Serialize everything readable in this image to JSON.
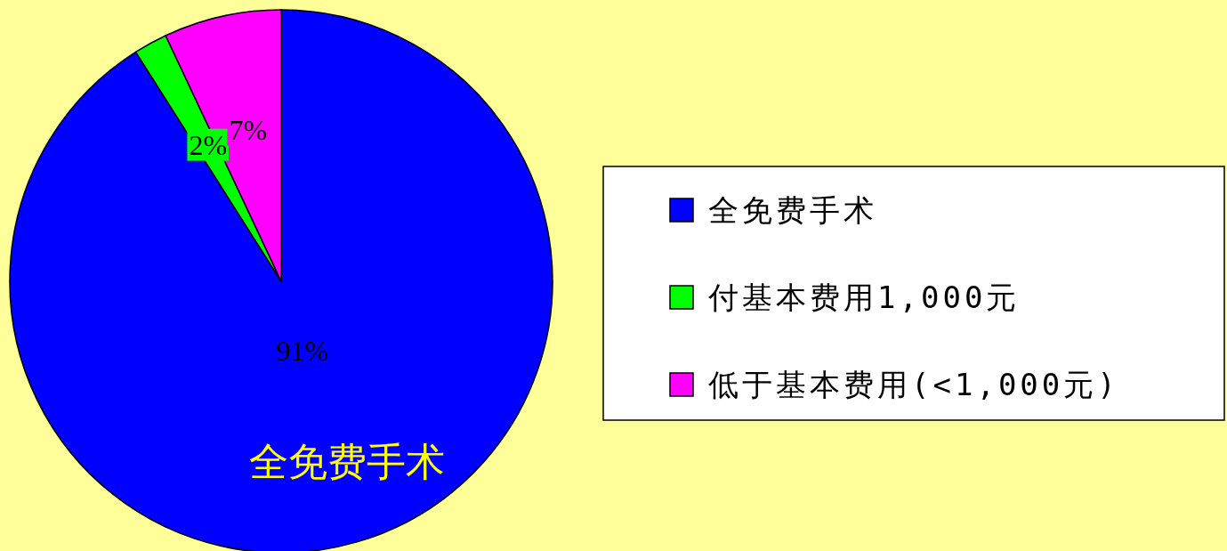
{
  "chart_data": {
    "type": "pie",
    "categories": [
      "全免费手术",
      "付基本费用1,000元",
      "低于基本费用(<1,000元)"
    ],
    "values": [
      91,
      2,
      7
    ],
    "colors": [
      "#0000ff",
      "#00ff00",
      "#ff00ff"
    ],
    "value_labels": [
      "91%",
      "2%",
      "7%"
    ],
    "legend": "right",
    "annotations": [
      "全免费手术"
    ]
  }
}
